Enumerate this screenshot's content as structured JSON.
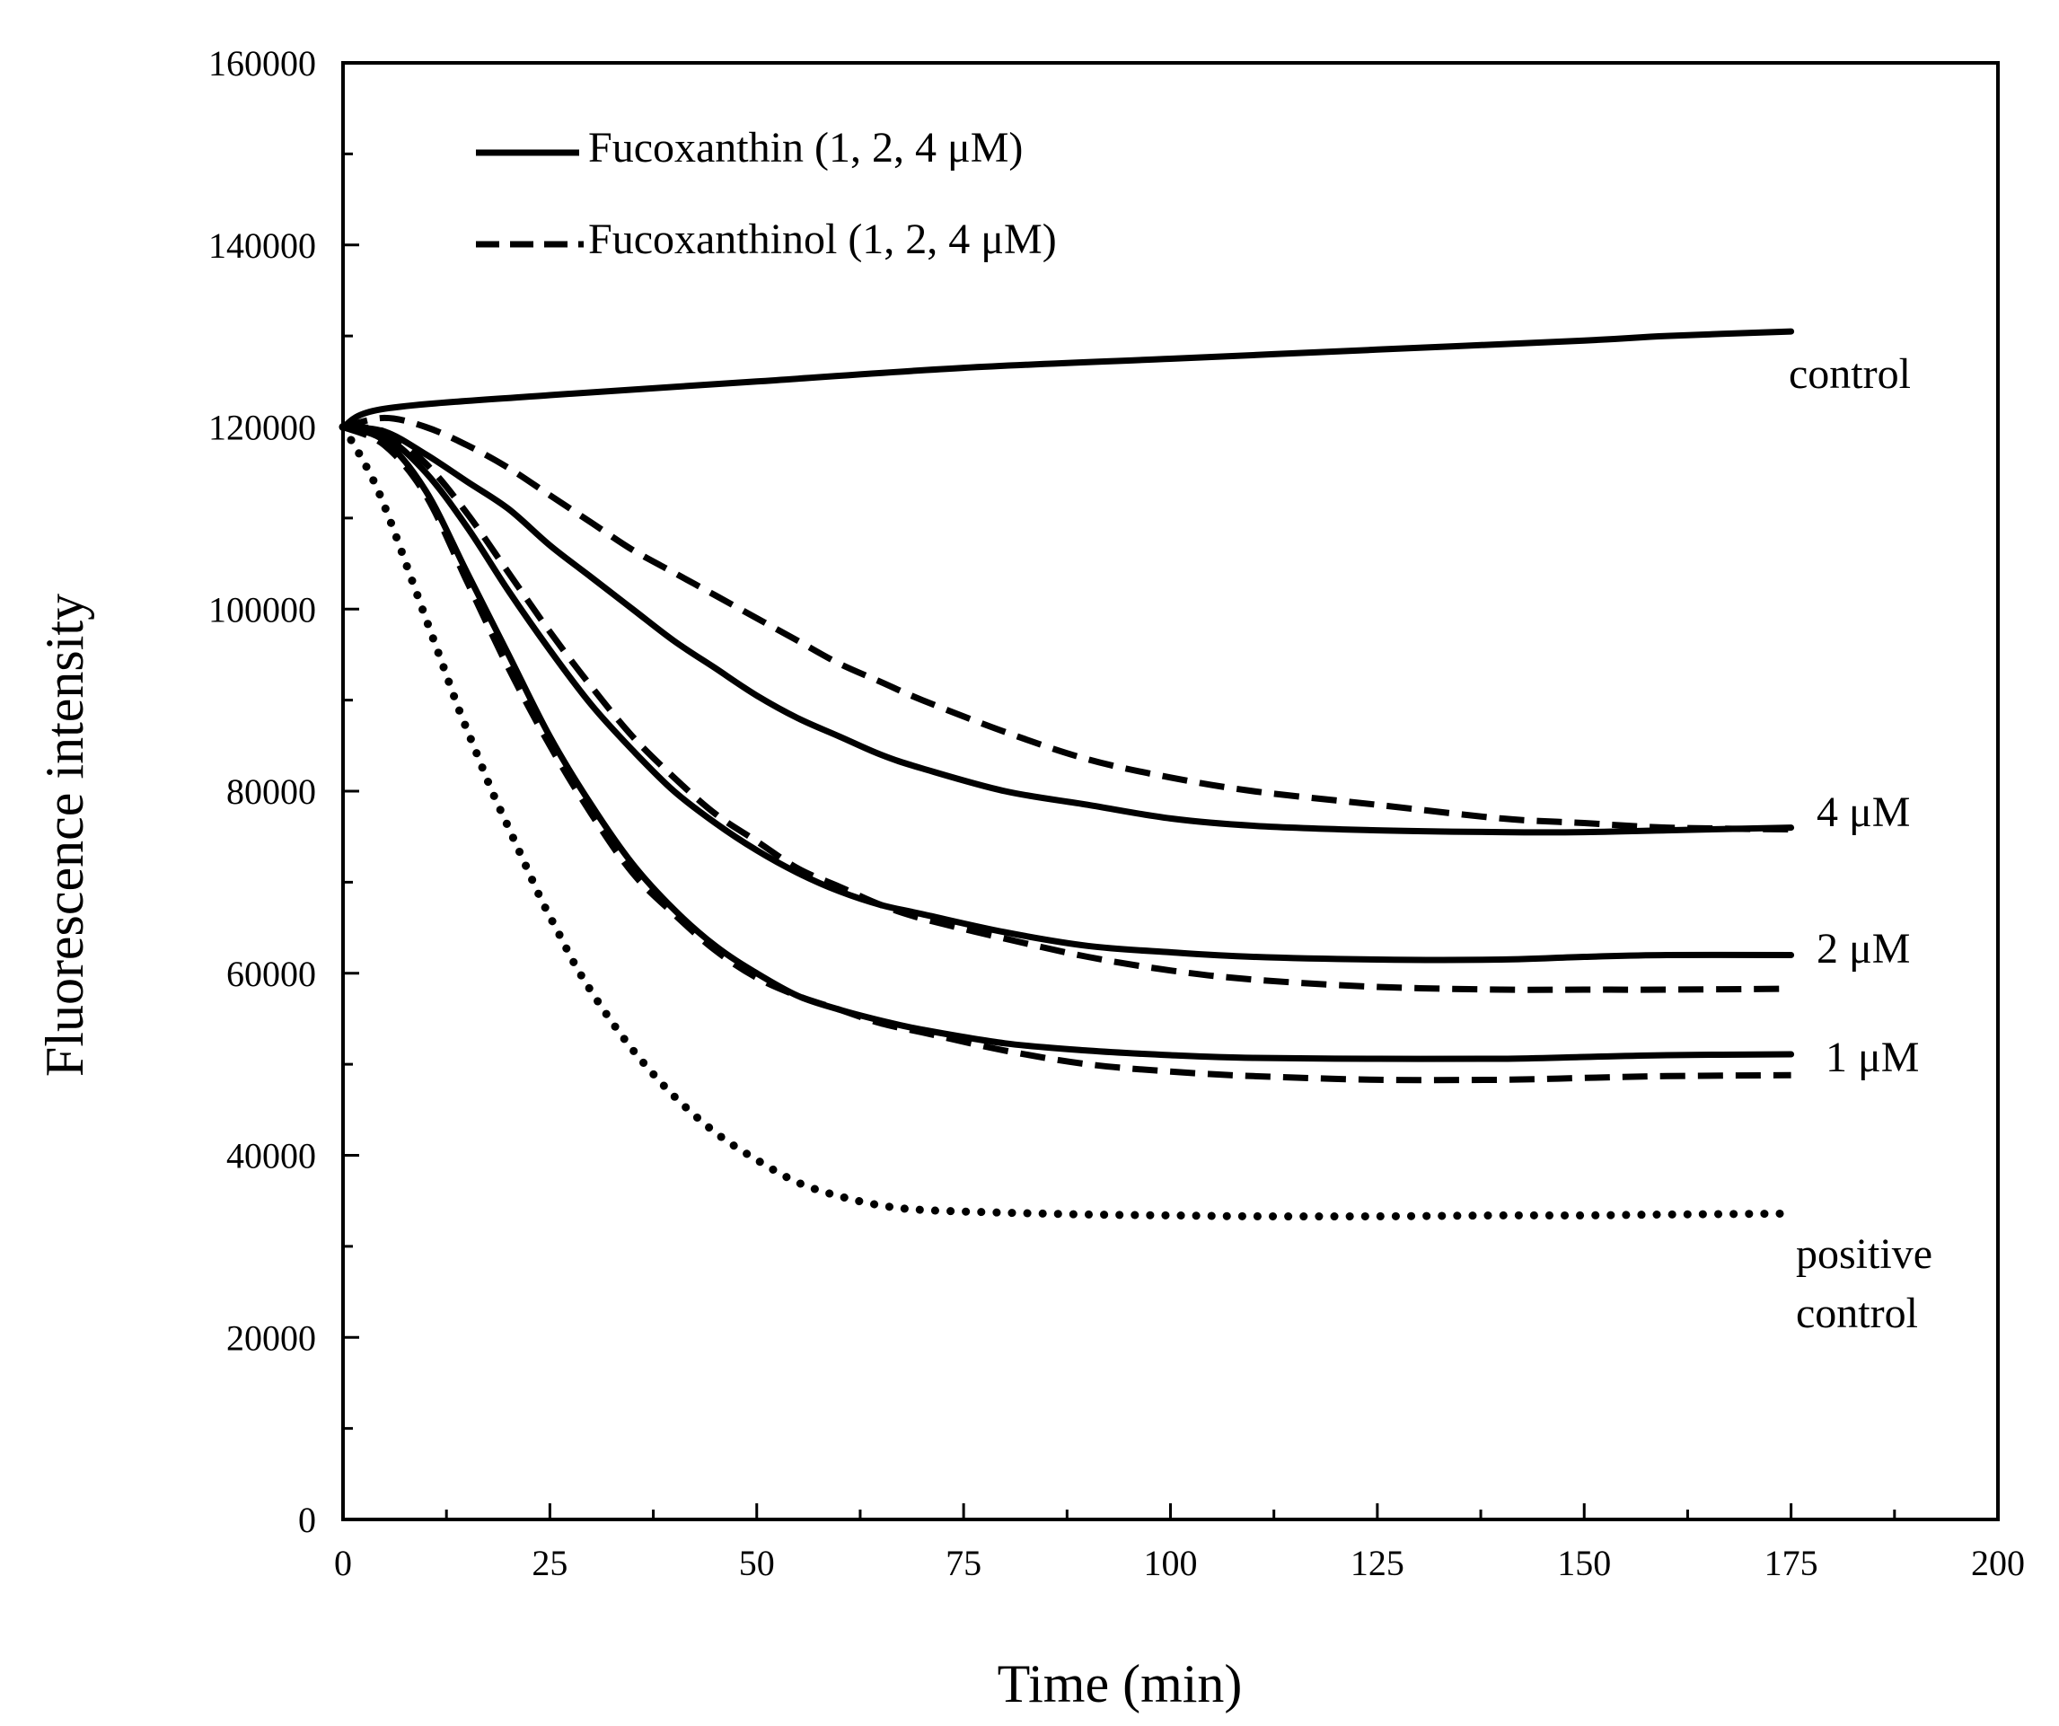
{
  "chart_data": {
    "type": "line",
    "title": "",
    "xlabel": "Time (min)",
    "ylabel": "Fluorescence intensity",
    "xlim": [
      0,
      200
    ],
    "ylim": [
      0,
      160000
    ],
    "x_ticks": [
      0,
      25,
      50,
      75,
      100,
      125,
      150,
      175,
      200
    ],
    "y_ticks": [
      0,
      20000,
      40000,
      60000,
      80000,
      100000,
      120000,
      140000,
      160000
    ],
    "grid": false,
    "legend": {
      "position": "top-left",
      "entries": [
        {
          "label": "Fucoxanthin (1, 2, 4 μM)",
          "style": "solid"
        },
        {
          "label": "Fucoxanthinol (1, 2, 4 μM)",
          "style": "dashed"
        }
      ]
    },
    "series": [
      {
        "name": "control",
        "style": "solid",
        "x": [
          0,
          5,
          25,
          50,
          75,
          100,
          125,
          150,
          160,
          175
        ],
        "y": [
          120000,
          122000,
          123500,
          125000,
          126500,
          127500,
          128500,
          129500,
          130000,
          130500
        ]
      },
      {
        "name": "Fucoxanthin 4 μM",
        "style": "solid",
        "x": [
          0,
          5,
          10,
          15,
          20,
          25,
          30,
          35,
          40,
          45,
          50,
          55,
          60,
          65,
          70,
          80,
          90,
          100,
          110,
          125,
          140,
          150,
          160,
          175
        ],
        "y": [
          120000,
          119500,
          117000,
          114000,
          111000,
          107000,
          103500,
          100000,
          96500,
          93500,
          90500,
          88000,
          86000,
          84000,
          82500,
          80000,
          78500,
          77000,
          76200,
          75700,
          75500,
          75500,
          75700,
          76000
        ]
      },
      {
        "name": "Fucoxanthin 2 μM",
        "style": "solid",
        "x": [
          0,
          5,
          10,
          15,
          20,
          25,
          30,
          35,
          40,
          45,
          50,
          55,
          60,
          65,
          70,
          80,
          90,
          100,
          110,
          125,
          140,
          150,
          160,
          175
        ],
        "y": [
          120000,
          119000,
          115000,
          109000,
          102000,
          95500,
          89500,
          84500,
          80000,
          76500,
          73500,
          71000,
          69000,
          67500,
          66500,
          64500,
          63000,
          62300,
          61800,
          61500,
          61500,
          61800,
          62000,
          62000
        ]
      },
      {
        "name": "Fucoxanthin 1 μM",
        "style": "solid",
        "x": [
          0,
          5,
          10,
          15,
          20,
          25,
          30,
          35,
          40,
          45,
          50,
          55,
          60,
          65,
          70,
          80,
          90,
          100,
          110,
          125,
          140,
          150,
          160,
          175
        ],
        "y": [
          120000,
          118500,
          113000,
          104000,
          95000,
          86000,
          78500,
          72000,
          67000,
          63000,
          60000,
          57500,
          56000,
          54800,
          53800,
          52300,
          51500,
          51000,
          50700,
          50600,
          50600,
          50800,
          51000,
          51100
        ]
      },
      {
        "name": "Fucoxanthinol 4 μM",
        "style": "dashed",
        "x": [
          0,
          5,
          10,
          15,
          20,
          25,
          30,
          35,
          40,
          45,
          50,
          55,
          60,
          65,
          70,
          80,
          90,
          100,
          110,
          125,
          140,
          150,
          160,
          175
        ],
        "y": [
          120000,
          121000,
          120000,
          118000,
          115500,
          112500,
          109500,
          106500,
          104000,
          101500,
          99000,
          96500,
          94000,
          92000,
          90000,
          86500,
          83500,
          81500,
          80000,
          78500,
          77000,
          76500,
          76000,
          75800
        ]
      },
      {
        "name": "Fucoxanthinol 2 μM",
        "style": "dashed",
        "x": [
          0,
          5,
          10,
          15,
          20,
          25,
          30,
          35,
          40,
          45,
          50,
          55,
          60,
          65,
          70,
          80,
          90,
          100,
          110,
          125,
          140,
          150,
          160,
          175
        ],
        "y": [
          120000,
          119500,
          116000,
          110500,
          104000,
          97500,
          91500,
          86000,
          81500,
          77500,
          74500,
          71500,
          69500,
          67500,
          66000,
          63800,
          61800,
          60300,
          59300,
          58500,
          58200,
          58200,
          58200,
          58300
        ]
      },
      {
        "name": "Fucoxanthinol 1 μM",
        "style": "dashed",
        "x": [
          0,
          5,
          10,
          15,
          20,
          25,
          30,
          35,
          40,
          45,
          50,
          55,
          60,
          65,
          70,
          80,
          90,
          100,
          110,
          125,
          140,
          150,
          160,
          175
        ],
        "y": [
          120000,
          118000,
          112500,
          103000,
          93500,
          85000,
          77500,
          71000,
          66500,
          62500,
          59500,
          57500,
          56000,
          54500,
          53500,
          51500,
          50000,
          49200,
          48700,
          48300,
          48300,
          48500,
          48700,
          48800
        ]
      },
      {
        "name": "positive control",
        "style": "dotted",
        "x": [
          0,
          2,
          4,
          6,
          8,
          10,
          12,
          14,
          16,
          18,
          20,
          22,
          24,
          26,
          28,
          30,
          33,
          36,
          40,
          45,
          50,
          55,
          60,
          65,
          70,
          80,
          90,
          100,
          110,
          125,
          140,
          150,
          160,
          175
        ],
        "y": [
          120000,
          117000,
          113500,
          109000,
          104000,
          99000,
          94000,
          89000,
          84500,
          80000,
          76000,
          72000,
          68000,
          64500,
          61000,
          58000,
          54000,
          50500,
          46500,
          42500,
          39500,
          37000,
          35500,
          34500,
          34000,
          33700,
          33500,
          33400,
          33300,
          33300,
          33400,
          33400,
          33500,
          33600
        ]
      }
    ],
    "series_labels": [
      {
        "text": "control",
        "series": "control"
      },
      {
        "text": "4 μM",
        "series": "4 μM"
      },
      {
        "text": "2 μM",
        "series": "2 μM"
      },
      {
        "text": "1 μM",
        "series": "1 μM"
      },
      {
        "text": "positive",
        "series": "positive control"
      },
      {
        "text": "control",
        "series": "positive control"
      }
    ]
  }
}
